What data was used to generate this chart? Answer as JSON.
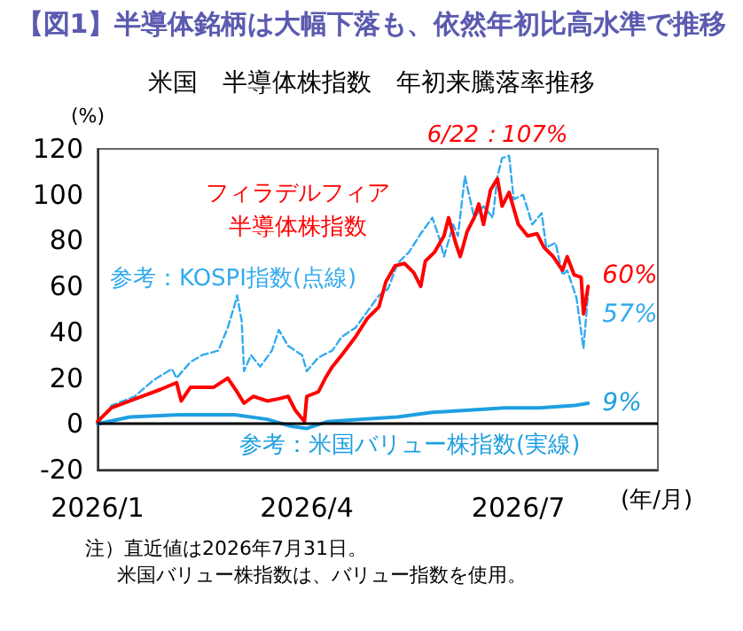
{
  "chart_data": {
    "type": "line",
    "title": "【図1】半導体銘柄は大幅下落も、依然年初比高水準で推移",
    "subtitle": "米国　半導体株指数　年初来騰落率推移",
    "xlabel": "(年/月)",
    "ylabel": "(%)",
    "annotations": [
      {
        "text": "6/22：107%",
        "x": "2026-06-22",
        "y": 107
      },
      "注）直近値は2026年7月31日。",
      "米国バリュー株指数は、バリュー指数を使用。"
    ],
    "xlim": [
      "2026-01-01",
      "2026-08-30"
    ],
    "xticks": [
      {
        "value": "2026-01-01",
        "label": "2026/1"
      },
      {
        "value": "2026-04-01",
        "label": "2026/4"
      },
      {
        "value": "2026-07-01",
        "label": "2026/7"
      }
    ],
    "ylim": [
      -20,
      120
    ],
    "yticks": [
      -20,
      0,
      20,
      40,
      60,
      80,
      100,
      120
    ],
    "grid": false,
    "legend": false,
    "marker": "none",
    "ref_lines": [
      {
        "axis": "y",
        "value": 0,
        "color": "#000000"
      }
    ],
    "series": [
      {
        "name": "フィラデルフィア半導体株指数",
        "color": "#ff0000",
        "line_style": "solid",
        "x": [
          "2026-01-01",
          "2026-01-07",
          "2026-01-20",
          "2026-01-28",
          "2026-02-04",
          "2026-02-06",
          "2026-02-10",
          "2026-02-20",
          "2026-02-26",
          "2026-03-02",
          "2026-03-05",
          "2026-03-09",
          "2026-03-15",
          "2026-03-20",
          "2026-03-24",
          "2026-03-27",
          "2026-03-31",
          "2026-04-01",
          "2026-04-06",
          "2026-04-09",
          "2026-04-12",
          "2026-04-16",
          "2026-04-22",
          "2026-04-27",
          "2026-05-02",
          "2026-05-05",
          "2026-05-09",
          "2026-05-13",
          "2026-05-17",
          "2026-05-20",
          "2026-05-22",
          "2026-05-26",
          "2026-05-30",
          "2026-06-01",
          "2026-06-04",
          "2026-06-06",
          "2026-06-09",
          "2026-06-12",
          "2026-06-14",
          "2026-06-16",
          "2026-06-19",
          "2026-06-22",
          "2026-06-24",
          "2026-06-27",
          "2026-07-01",
          "2026-07-05",
          "2026-07-09",
          "2026-07-12",
          "2026-07-16",
          "2026-07-20",
          "2026-07-22",
          "2026-07-25",
          "2026-07-28",
          "2026-07-29",
          "2026-07-31"
        ],
        "values": [
          1,
          7,
          12,
          15,
          18,
          10,
          16,
          16,
          20,
          14,
          9,
          12,
          10,
          11,
          12,
          6,
          1,
          12,
          14,
          20,
          25,
          30,
          38,
          46,
          51,
          62,
          69,
          70,
          66,
          60,
          71,
          75,
          82,
          90,
          79,
          73,
          84,
          90,
          96,
          87,
          102,
          107,
          95,
          101,
          87,
          82,
          83,
          77,
          73,
          67,
          73,
          65,
          64,
          48,
          60
        ],
        "value_labels": [
          null,
          null,
          null,
          null,
          null,
          null,
          null,
          null,
          null,
          null,
          null,
          null,
          null,
          null,
          null,
          null,
          null,
          null,
          null,
          null,
          null,
          null,
          null,
          null,
          null,
          null,
          null,
          null,
          null,
          null,
          null,
          null,
          null,
          null,
          null,
          null,
          null,
          null,
          null,
          null,
          null,
          null,
          null,
          null,
          null,
          null,
          null,
          null,
          null,
          null,
          null,
          null,
          null,
          null,
          "60%"
        ]
      },
      {
        "name": "参考：KOSPI指数(点線)",
        "color": "#33aaee",
        "line_style": "dashed",
        "x": [
          "2026-01-01",
          "2026-01-07",
          "2026-01-17",
          "2026-01-25",
          "2026-02-02",
          "2026-02-04",
          "2026-02-10",
          "2026-02-15",
          "2026-02-22",
          "2026-02-26",
          "2026-03-01",
          "2026-03-02",
          "2026-03-04",
          "2026-03-05",
          "2026-03-08",
          "2026-03-12",
          "2026-03-17",
          "2026-03-20",
          "2026-03-24",
          "2026-03-30",
          "2026-04-01",
          "2026-04-06",
          "2026-04-12",
          "2026-04-16",
          "2026-04-22",
          "2026-04-27",
          "2026-05-02",
          "2026-05-06",
          "2026-05-10",
          "2026-05-15",
          "2026-05-20",
          "2026-05-25",
          "2026-05-28",
          "2026-05-30",
          "2026-06-03",
          "2026-06-05",
          "2026-06-08",
          "2026-06-12",
          "2026-06-16",
          "2026-06-20",
          "2026-06-22",
          "2026-06-24",
          "2026-06-27",
          "2026-06-29",
          "2026-07-03",
          "2026-07-07",
          "2026-07-11",
          "2026-07-13",
          "2026-07-17",
          "2026-07-20",
          "2026-07-22",
          "2026-07-26",
          "2026-07-29",
          "2026-07-31"
        ],
        "values": [
          0,
          8,
          12,
          19,
          24,
          20,
          27,
          30,
          32,
          42,
          52,
          56,
          45,
          23,
          30,
          25,
          32,
          41,
          34,
          30,
          23,
          29,
          32,
          38,
          42,
          49,
          56,
          59,
          70,
          75,
          83,
          90,
          81,
          73,
          87,
          82,
          108,
          90,
          95,
          90,
          108,
          116,
          117,
          98,
          100,
          87,
          92,
          77,
          79,
          65,
          67,
          55,
          33,
          57
        ],
        "value_labels": [
          null,
          null,
          null,
          null,
          null,
          null,
          null,
          null,
          null,
          null,
          null,
          null,
          null,
          null,
          null,
          null,
          null,
          null,
          null,
          null,
          null,
          null,
          null,
          null,
          null,
          null,
          null,
          null,
          null,
          null,
          null,
          null,
          null,
          null,
          null,
          null,
          null,
          null,
          null,
          null,
          null,
          null,
          null,
          null,
          null,
          null,
          null,
          null,
          null,
          null,
          null,
          null,
          null,
          "57%"
        ]
      },
      {
        "name": "参考：米国バリュー株指数(実線)",
        "color": "#1e9fe0",
        "line_style": "solid",
        "x": [
          "2026-01-01",
          "2026-01-15",
          "2026-02-05",
          "2026-03-01",
          "2026-03-15",
          "2026-03-25",
          "2026-04-01",
          "2026-04-10",
          "2026-04-25",
          "2026-05-10",
          "2026-05-25",
          "2026-06-10",
          "2026-06-25",
          "2026-07-10",
          "2026-07-25",
          "2026-07-31"
        ],
        "values": [
          0,
          3,
          4,
          4,
          2,
          -1,
          -2,
          1,
          2,
          3,
          5,
          6,
          7,
          7,
          8,
          9
        ],
        "value_labels": [
          null,
          null,
          null,
          null,
          null,
          null,
          null,
          null,
          null,
          null,
          null,
          null,
          null,
          null,
          null,
          "9%"
        ]
      }
    ]
  }
}
